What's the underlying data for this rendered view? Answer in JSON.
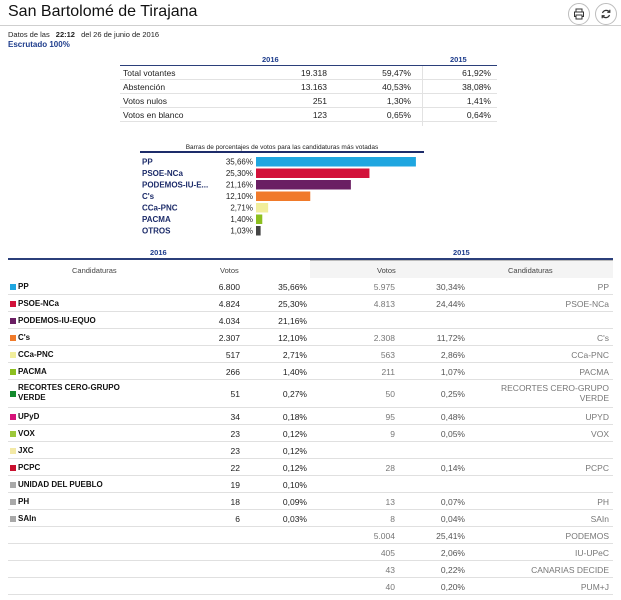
{
  "header": {
    "title": "San Bartolomé de Tirajana",
    "print_icon": "printer-icon",
    "refresh_icon": "refresh-icon"
  },
  "meta": {
    "prefix": "Datos de las",
    "time": "22:12",
    "date": "del 26 de junio de 2016",
    "scrutiny": "Escrutado 100%"
  },
  "summary": {
    "year_current": "2016",
    "year_previous": "2015",
    "rows": [
      {
        "label": "Total votantes",
        "votes": "19.318",
        "pct": "59,47%",
        "prev": "61,92%"
      },
      {
        "label": "Abstención",
        "votes": "13.163",
        "pct": "40,53%",
        "prev": "38,08%"
      },
      {
        "label": "Votos nulos",
        "votes": "251",
        "pct": "1,30%",
        "prev": "1,41%"
      },
      {
        "label": "Votos en blanco",
        "votes": "123",
        "pct": "0,65%",
        "prev": "0,64%"
      }
    ]
  },
  "chart_data": {
    "type": "bar",
    "title": "Barras de porcentajes de votos para las candidaturas más votadas",
    "categories": [
      "PP",
      "PSOE-NCa",
      "PODEMOS-IU-E...",
      "C's",
      "CCa-PNC",
      "PACMA",
      "OTROS"
    ],
    "values": [
      35.66,
      25.3,
      21.16,
      12.1,
      2.71,
      1.4,
      1.03
    ],
    "value_labels": [
      "35,66%",
      "25,30%",
      "21,16%",
      "12,10%",
      "2,71%",
      "1,40%",
      "1,03%"
    ],
    "colors": [
      "#1fa6e0",
      "#d2123a",
      "#6a1f63",
      "#f07a2a",
      "#f1ee9b",
      "#8cbf1f",
      "#444444"
    ]
  },
  "table": {
    "year_current": "2016",
    "year_previous": "2015",
    "col_candidaturas": "Candidaturas",
    "col_votos": "Votos",
    "rows": [
      {
        "name": "PP",
        "color": "#1fa6e0",
        "v16": "6.800",
        "p16": "35,66%",
        "v15": "5.975",
        "p15": "30,34%",
        "n15": "PP",
        "h": 17
      },
      {
        "name": "PSOE-NCa",
        "color": "#d2123a",
        "v16": "4.824",
        "p16": "25,30%",
        "v15": "4.813",
        "p15": "24,44%",
        "n15": "PSOE-NCa",
        "h": 17
      },
      {
        "name": "PODEMOS-IU-EQUO",
        "color": "#6a1f63",
        "v16": "4.034",
        "p16": "21,16%",
        "v15": "",
        "p15": "",
        "n15": "",
        "h": 17
      },
      {
        "name": "C's",
        "color": "#f07a2a",
        "v16": "2.307",
        "p16": "12,10%",
        "v15": "2.308",
        "p15": "11,72%",
        "n15": "C's",
        "h": 17
      },
      {
        "name": "CCa-PNC",
        "color": "#f1ee9b",
        "v16": "517",
        "p16": "2,71%",
        "v15": "563",
        "p15": "2,86%",
        "n15": "CCa-PNC",
        "h": 17
      },
      {
        "name": "PACMA",
        "color": "#8cbf1f",
        "v16": "266",
        "p16": "1,40%",
        "v15": "211",
        "p15": "1,07%",
        "n15": "PACMA",
        "h": 17
      },
      {
        "name": "RECORTES CERO-GRUPO VERDE",
        "color": "#128a2c",
        "v16": "51",
        "p16": "0,27%",
        "v15": "50",
        "p15": "0,25%",
        "n15": "RECORTES CERO-GRUPO VERDE",
        "h": 28
      },
      {
        "name": "UPyD",
        "color": "#d6147a",
        "v16": "34",
        "p16": "0,18%",
        "v15": "95",
        "p15": "0,48%",
        "n15": "UPYD",
        "h": 17
      },
      {
        "name": "VOX",
        "color": "#9cc83a",
        "v16": "23",
        "p16": "0,12%",
        "v15": "9",
        "p15": "0,05%",
        "n15": "VOX",
        "h": 17
      },
      {
        "name": "JXC",
        "color": "#f3e9a6",
        "v16": "23",
        "p16": "0,12%",
        "v15": "",
        "p15": "",
        "n15": "",
        "h": 17
      },
      {
        "name": "PCPC",
        "color": "#c8102e",
        "v16": "22",
        "p16": "0,12%",
        "v15": "28",
        "p15": "0,14%",
        "n15": "PCPC",
        "h": 17
      },
      {
        "name": "UNIDAD DEL PUEBLO",
        "color": "#a9a9a9",
        "v16": "19",
        "p16": "0,10%",
        "v15": "",
        "p15": "",
        "n15": "",
        "h": 17
      },
      {
        "name": "PH",
        "color": "#a9a9a9",
        "v16": "18",
        "p16": "0,09%",
        "v15": "13",
        "p15": "0,07%",
        "n15": "PH",
        "h": 17
      },
      {
        "name": "SAIn",
        "color": "#a9a9a9",
        "v16": "6",
        "p16": "0,03%",
        "v15": "8",
        "p15": "0,04%",
        "n15": "SAIn",
        "h": 17
      },
      {
        "name": "",
        "color": "",
        "v16": "",
        "p16": "",
        "v15": "5.004",
        "p15": "25,41%",
        "n15": "PODEMOS",
        "h": 17
      },
      {
        "name": "",
        "color": "",
        "v16": "",
        "p16": "",
        "v15": "405",
        "p15": "2,06%",
        "n15": "IU-UPeC",
        "h": 17
      },
      {
        "name": "",
        "color": "",
        "v16": "",
        "p16": "",
        "v15": "43",
        "p15": "0,22%",
        "n15": "CANARIAS DECIDE",
        "h": 17
      },
      {
        "name": "",
        "color": "",
        "v16": "",
        "p16": "",
        "v15": "40",
        "p15": "0,20%",
        "n15": "PUM+J",
        "h": 17
      }
    ]
  }
}
